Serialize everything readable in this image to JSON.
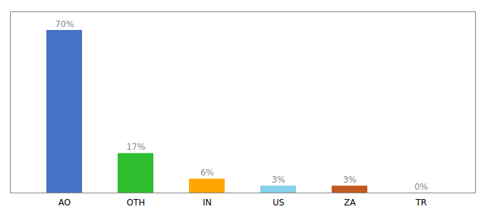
{
  "chart_data": {
    "type": "bar",
    "categories": [
      "AO",
      "OTH",
      "IN",
      "US",
      "ZA",
      "TR"
    ],
    "values": [
      70,
      17,
      6,
      3,
      3,
      0
    ],
    "value_labels": [
      "70%",
      "17%",
      "6%",
      "3%",
      "3%",
      "0%"
    ],
    "colors": [
      "#4472c4",
      "#2ebd2e",
      "#ffa500",
      "#87ceeb",
      "#c05a1f",
      "#cccccc"
    ],
    "ylim": [
      0,
      78
    ],
    "data_labels": true,
    "tick_labels": "x"
  }
}
